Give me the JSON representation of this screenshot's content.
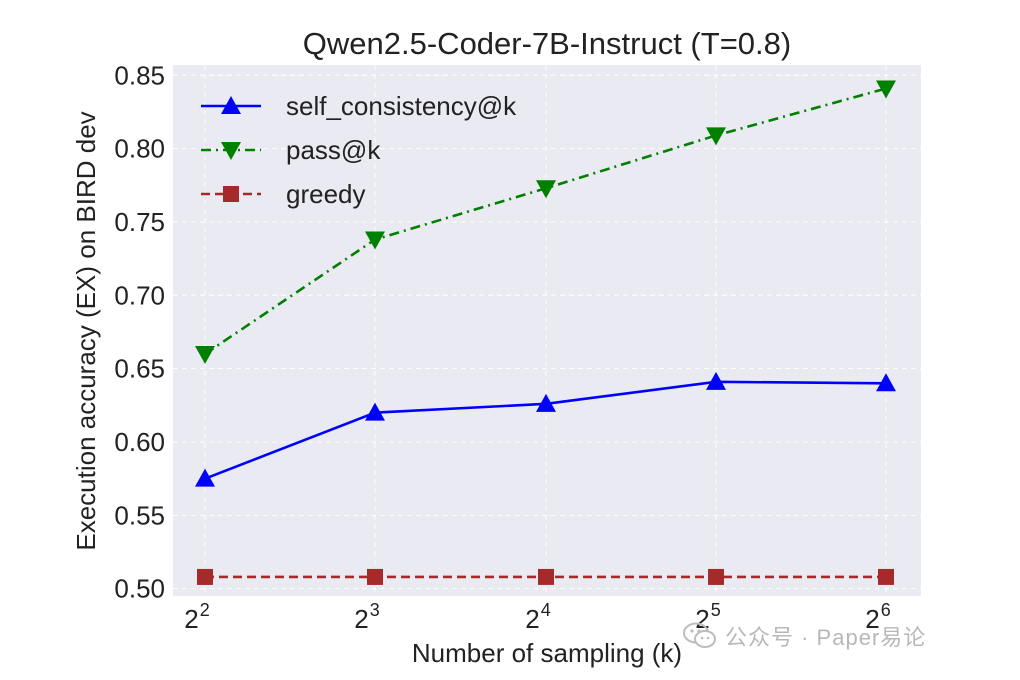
{
  "chart_data": {
    "type": "line",
    "title": "Qwen2.5-Coder-7B-Instruct (T=0.8)",
    "xlabel": "Number of sampling (k)",
    "ylabel": "Execution accuracy (EX) on BIRD dev",
    "x_ticks": [
      {
        "base": "2",
        "exp": "2"
      },
      {
        "base": "2",
        "exp": "3"
      },
      {
        "base": "2",
        "exp": "4"
      },
      {
        "base": "2",
        "exp": "5"
      },
      {
        "base": "2",
        "exp": "6"
      }
    ],
    "x": [
      4,
      8,
      16,
      32,
      64
    ],
    "x_scale": "log2",
    "y_ticks": [
      "0.50",
      "0.55",
      "0.60",
      "0.65",
      "0.70",
      "0.75",
      "0.80",
      "0.85"
    ],
    "ylim": [
      0.495,
      0.857
    ],
    "grid": true,
    "legend_position": "top-left",
    "series": [
      {
        "name": "self_consistency@k",
        "values": [
          0.575,
          0.62,
          0.626,
          0.641,
          0.64
        ],
        "color": "#0000ff",
        "marker": "triangle-up",
        "line_style": "solid"
      },
      {
        "name": "pass@k",
        "values": [
          0.66,
          0.738,
          0.773,
          0.809,
          0.841
        ],
        "color": "#008000",
        "marker": "triangle-down",
        "line_style": "dashdot"
      },
      {
        "name": "greedy",
        "values": [
          0.508,
          0.508,
          0.508,
          0.508,
          0.508
        ],
        "color": "#a52a2a",
        "marker": "square",
        "line_style": "dashed"
      }
    ]
  },
  "watermark": {
    "text": "公众号 · Paper易论",
    "icon": "wechat-icon"
  }
}
